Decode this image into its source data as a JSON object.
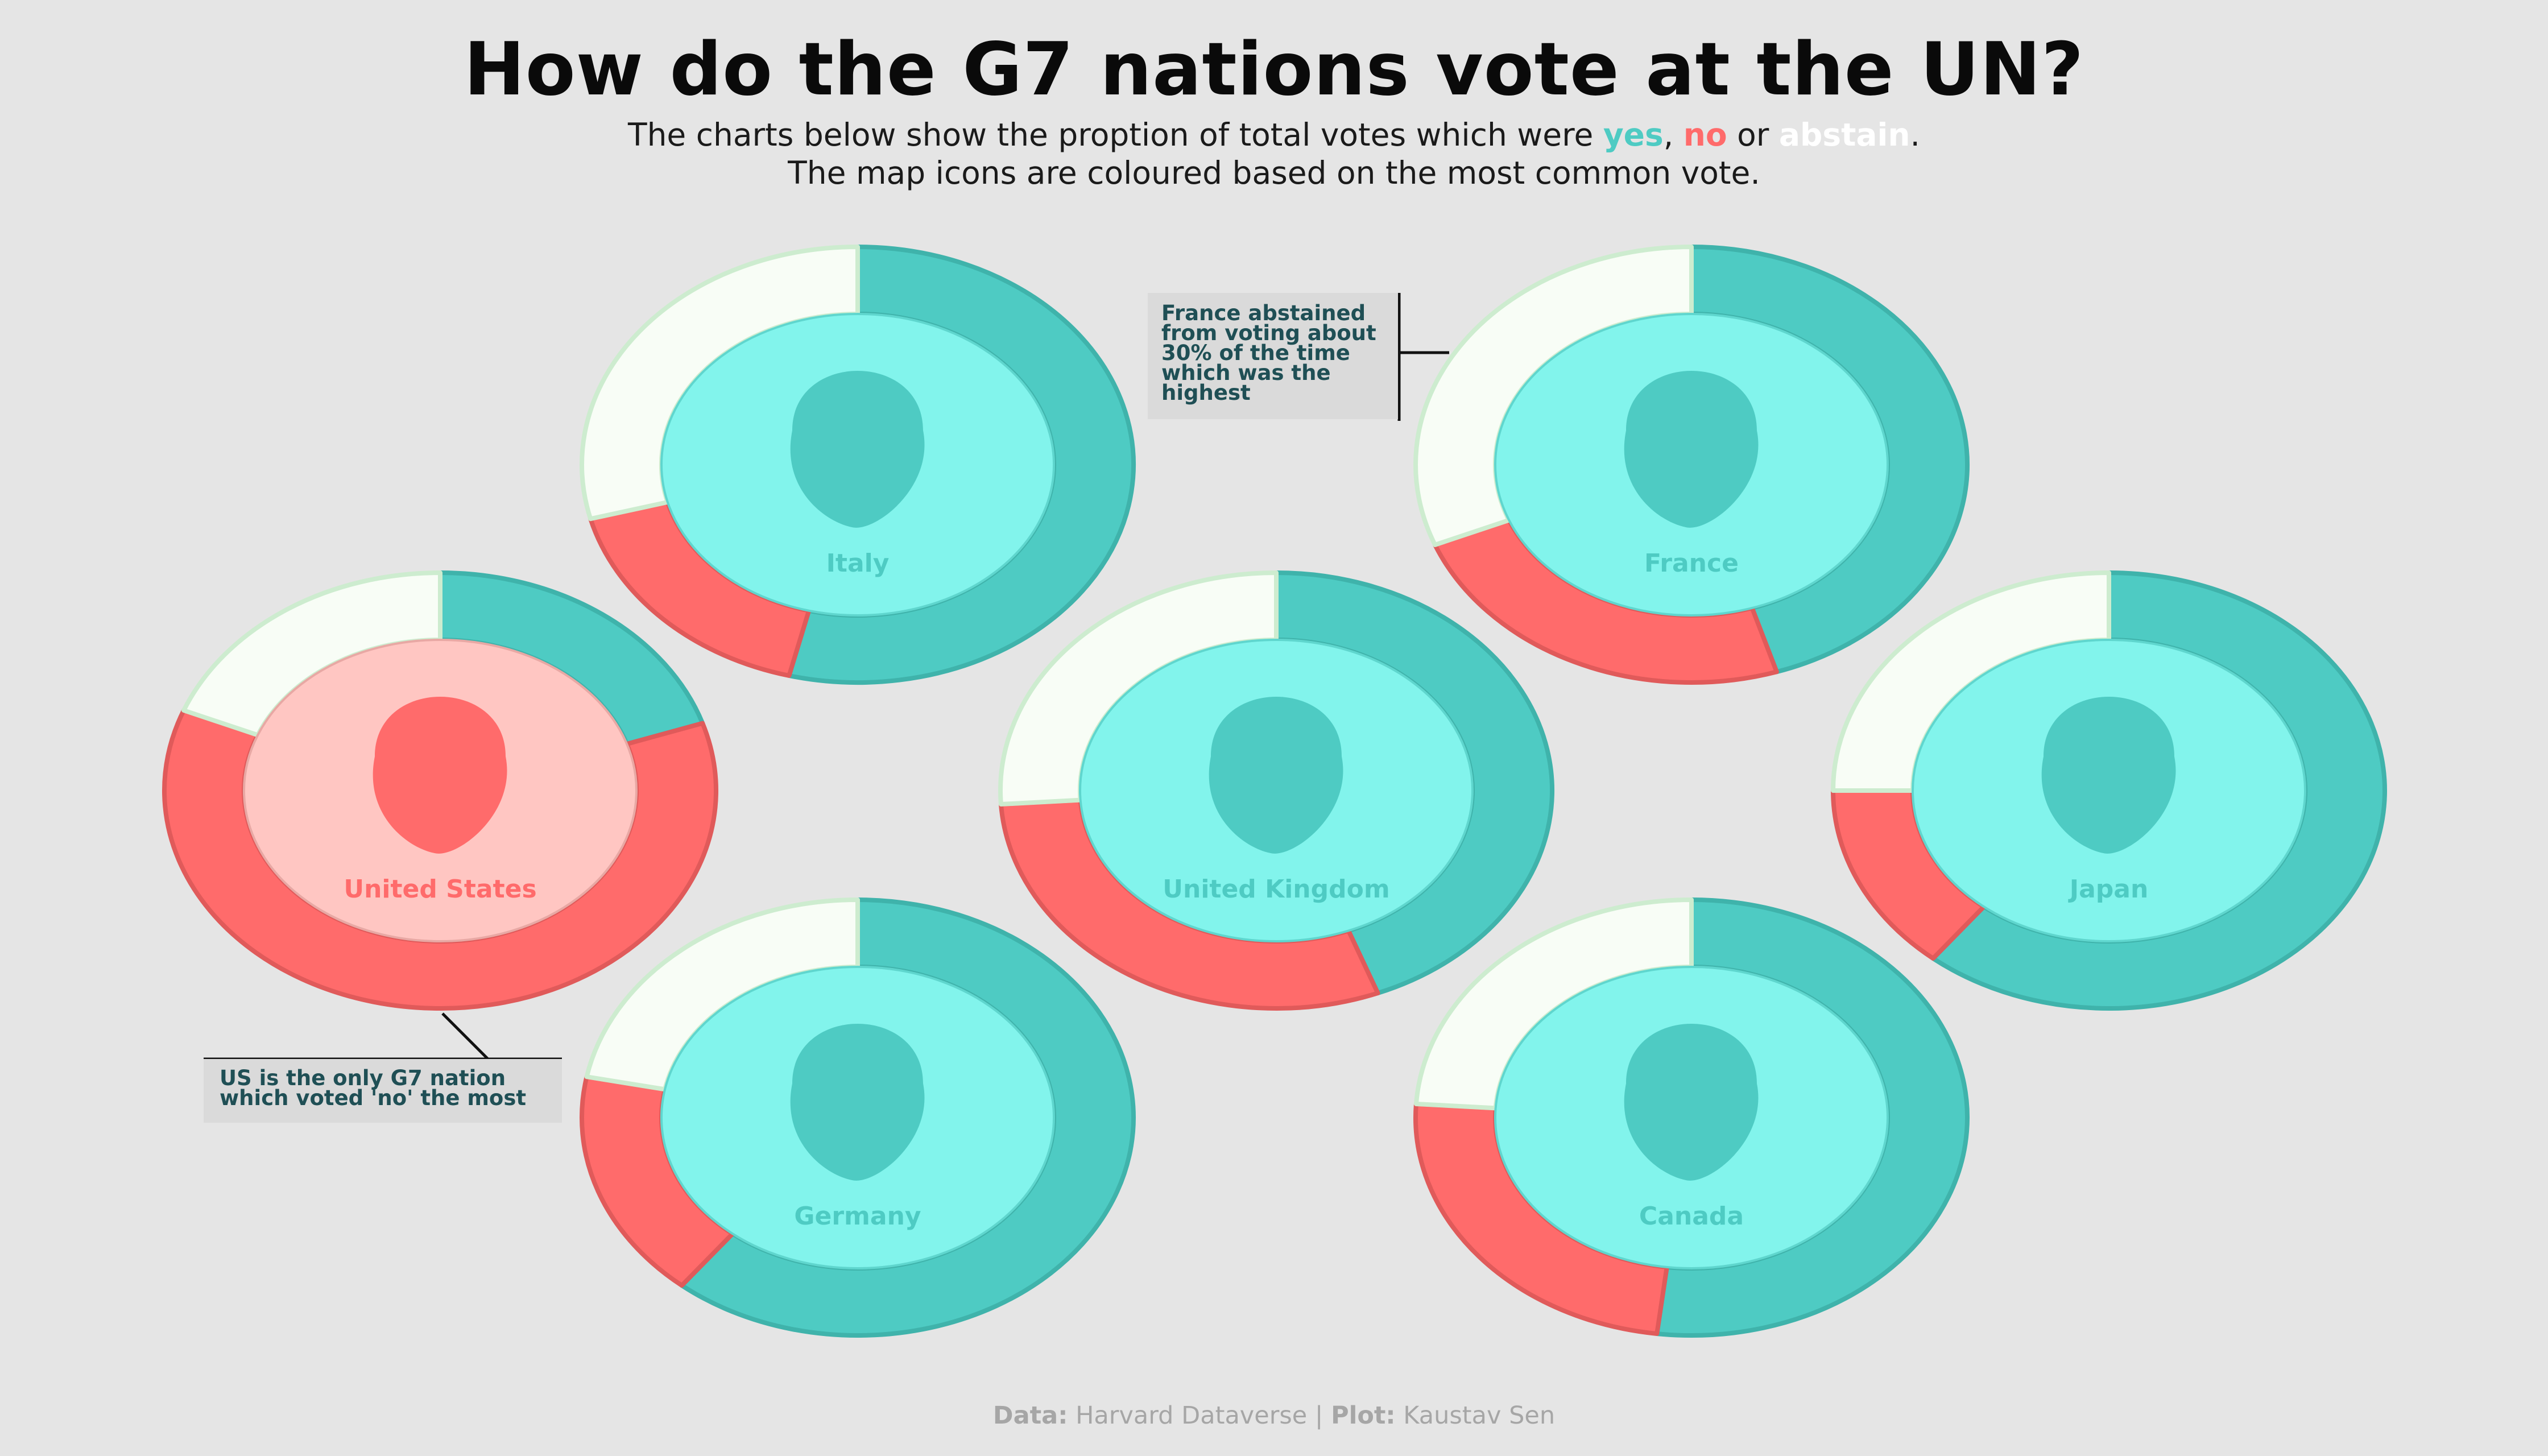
{
  "title": "How do the G7 nations vote at the UN?",
  "subtitle": {
    "line1_prefix": "The charts below show the proption of total votes which were ",
    "yes": "yes",
    "sep1": ", ",
    "no": "no",
    "sep2": " or ",
    "abstain": "abstain",
    "line1_suffix": ".",
    "line2": "The map icons are coloured based on the most common vote."
  },
  "colors": {
    "yes": "#4ecbc3",
    "no": "#ff6b6b",
    "abstain": "#f8fdf6",
    "inner_yes": "#82f4ec",
    "inner_no": "#ffc6c2",
    "map_yes": "#4ecbc3",
    "map_no": "#ff6b6b",
    "background": "#e5e5e5"
  },
  "annotations": {
    "france": "France abstained from voting about 30% of the time which was the highest",
    "us": "US is the only G7 nation which voted 'no' the most"
  },
  "footer": {
    "data_label": "Data:",
    "data_value": "Harvard Dataverse",
    "separator": "|",
    "plot_label": "Plot:",
    "plot_value": "Kaustav Sen"
  },
  "chart_data": {
    "type": "pie",
    "variant": "donut",
    "categories": [
      "yes",
      "no",
      "abstain"
    ],
    "series": [
      {
        "name": "Italy",
        "values": [
          0.54,
          0.17,
          0.29
        ],
        "most_common": "yes"
      },
      {
        "name": "France",
        "values": [
          0.45,
          0.24,
          0.31
        ],
        "most_common": "yes"
      },
      {
        "name": "United States",
        "values": [
          0.2,
          0.61,
          0.19
        ],
        "most_common": "no"
      },
      {
        "name": "United Kingdom",
        "values": [
          0.44,
          0.3,
          0.26
        ],
        "most_common": "yes"
      },
      {
        "name": "Japan",
        "values": [
          0.61,
          0.14,
          0.25
        ],
        "most_common": "yes"
      },
      {
        "name": "Germany",
        "values": [
          0.61,
          0.17,
          0.22
        ],
        "most_common": "yes"
      },
      {
        "name": "Canada",
        "values": [
          0.52,
          0.24,
          0.24
        ],
        "most_common": "yes"
      }
    ]
  }
}
